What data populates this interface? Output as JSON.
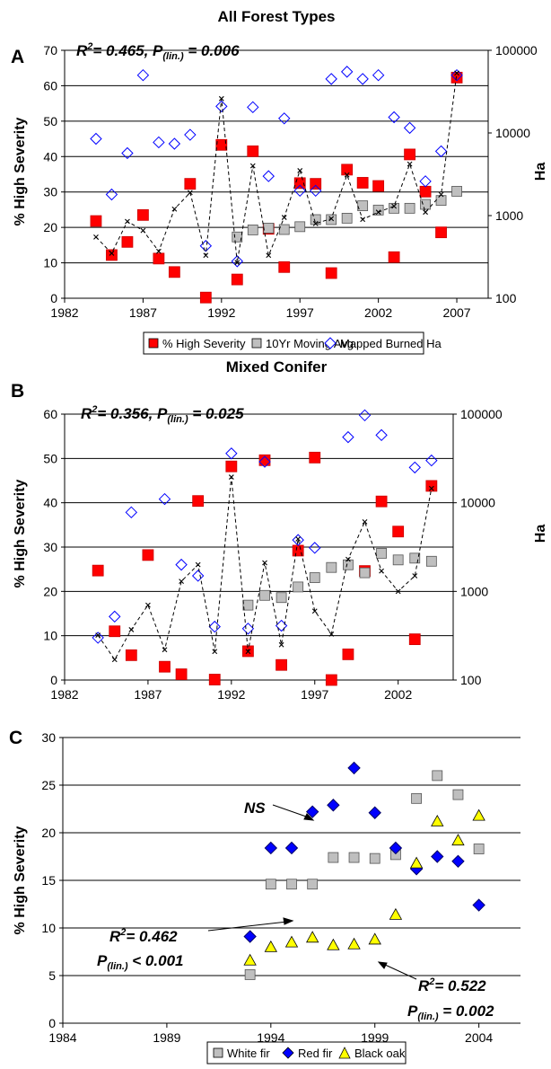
{
  "chart_data": [
    {
      "panel": "A",
      "title": "All Forest Types",
      "type": "scatter",
      "ylabel": "% High Severity",
      "ylabel_right": "Ha",
      "ylim": [
        0,
        70
      ],
      "y_ticks": [
        "0",
        "10",
        "20",
        "30",
        "40",
        "50",
        "60",
        "70"
      ],
      "y2_scale": "log",
      "y2lim": [
        100,
        100000
      ],
      "y2_ticks": [
        "100",
        "1000",
        "10000",
        "100000"
      ],
      "xlim": [
        1982,
        2009
      ],
      "x_ticks": [
        "1982",
        "1987",
        "1992",
        "1997",
        "2002",
        "2007"
      ],
      "grid": "horizontal",
      "annotation": {
        "r2": "= 0.465, ",
        "p_sub": "(lin.)",
        "p_val": " = 0.006"
      },
      "legend": {
        "placement": "bottom",
        "entries": [
          "% High Severity",
          "10Yr Moving Avg",
          "Mapped Burned Ha"
        ]
      },
      "series": [
        {
          "name": "% High Severity",
          "marker": "red-square",
          "axis": "left",
          "x": [
            1984,
            1985,
            1986,
            1987,
            1988,
            1989,
            1990,
            1991,
            1992,
            1993,
            1994,
            1995,
            1996,
            1997,
            1998,
            1999,
            2000,
            2001,
            2002,
            2003,
            2004,
            2005,
            2006,
            2007
          ],
          "y": [
            21.8,
            12.2,
            15.9,
            23.5,
            11.2,
            7.4,
            32.3,
            0.2,
            43.3,
            5.3,
            41.5,
            19.6,
            8.8,
            32.5,
            32.3,
            7.1,
            36.3,
            32.6,
            31.7,
            11.6,
            40.6,
            30.1,
            18.6,
            62.3
          ]
        },
        {
          "name": "10Yr Moving Avg",
          "marker": "gray-square",
          "axis": "left",
          "x": [
            1993,
            1994,
            1995,
            1996,
            1997,
            1998,
            1999,
            2000,
            2001,
            2002,
            2003,
            2004,
            2005,
            2006,
            2007
          ],
          "y": [
            17.3,
            19.3,
            19.8,
            19.4,
            20.2,
            22.2,
            22.2,
            22.6,
            26.1,
            24.9,
            25.4,
            25.4,
            26.5,
            27.6,
            30.2
          ]
        },
        {
          "name": "Mapped Burned Ha",
          "marker": "blue-diamond",
          "axis": "right",
          "x": [
            1984,
            1985,
            1986,
            1987,
            1988,
            1989,
            1990,
            1991,
            1992,
            1993,
            1994,
            1995,
            1996,
            1997,
            1998,
            1999,
            2000,
            2001,
            2002,
            2003,
            2004,
            2005,
            2006,
            2007
          ],
          "y": [
            8500,
            1800,
            5700,
            50000,
            7700,
            7400,
            9500,
            430,
            21000,
            280,
            20500,
            3000,
            15000,
            2000,
            2000,
            45000,
            55000,
            45000,
            50000,
            15500,
            11500,
            2600,
            6000,
            50000
          ]
        },
        {
          "name": "",
          "marker": "black-x-dashed",
          "axis": "right",
          "x": [
            1984,
            1985,
            1986,
            1987,
            1988,
            1989,
            1990,
            1991,
            1992,
            1993,
            1994,
            1995,
            1996,
            1997,
            1998,
            1999,
            2000,
            2001,
            2002,
            2003,
            2004,
            2005,
            2006,
            2007
          ],
          "y": [
            550,
            350,
            850,
            660,
            370,
            1200,
            1900,
            330,
            26000,
            270,
            4000,
            330,
            950,
            3500,
            800,
            920,
            3100,
            900,
            1100,
            1300,
            4200,
            1100,
            1800,
            53000
          ]
        }
      ]
    },
    {
      "panel": "B",
      "title": "Mixed Conifer",
      "type": "scatter",
      "ylabel": "% High Severity",
      "ylabel_right": "Ha",
      "ylim": [
        0,
        60
      ],
      "y_ticks": [
        "0",
        "10",
        "20",
        "30",
        "40",
        "50",
        "60"
      ],
      "y2_scale": "log",
      "y2lim": [
        100,
        100000
      ],
      "y2_ticks": [
        "100",
        "1000",
        "10000",
        "100000"
      ],
      "xlim": [
        1982,
        2005.3
      ],
      "x_ticks": [
        "1982",
        "1987",
        "1992",
        "1997",
        "2002"
      ],
      "grid": "horizontal",
      "annotation": {
        "r2": "= 0.356, ",
        "p_sub": "(lin.)",
        "p_val": " = 0.025"
      },
      "series": [
        {
          "name": "",
          "marker": "red-square",
          "axis": "left",
          "x": [
            1984,
            1985,
            1986,
            1987,
            1988,
            1989,
            1990,
            1991,
            1992,
            1993,
            1994,
            1995,
            1996,
            1997,
            1998,
            1999,
            2000,
            2001,
            2002,
            2003,
            2004
          ],
          "y": [
            24.7,
            11.0,
            5.6,
            28.2,
            3.0,
            1.3,
            40.4,
            0.1,
            48.2,
            6.5,
            49.6,
            3.4,
            29.2,
            50.2,
            0,
            5.8,
            24.6,
            40.3,
            33.5,
            9.2,
            43.8
          ]
        },
        {
          "name": "",
          "marker": "gray-square",
          "axis": "left",
          "x": [
            1993,
            1994,
            1995,
            1996,
            1997,
            1998,
            1999,
            2000,
            2001,
            2002,
            2003,
            2004
          ],
          "y": [
            16.9,
            19.1,
            18.6,
            21.0,
            23.1,
            25.4,
            26.0,
            24.2,
            28.6,
            27.1,
            27.5,
            26.8
          ]
        },
        {
          "name": "",
          "marker": "blue-diamond",
          "axis": "right",
          "x": [
            1984,
            1985,
            1986,
            1988,
            1989,
            1990,
            1991,
            1992,
            1993,
            1994,
            1995,
            1996,
            1997,
            1999,
            2000,
            2001,
            2003,
            2004
          ],
          "y": [
            300,
            520,
            7800,
            11000,
            2000,
            1500,
            400,
            36000,
            380,
            29000,
            410,
            3800,
            3100,
            55000,
            97000,
            58000,
            25000,
            30000
          ]
        },
        {
          "name": "",
          "marker": "black-x-dashed",
          "axis": "right",
          "x": [
            1984,
            1985,
            1986,
            1987,
            1988,
            1989,
            1990,
            1991,
            1992,
            1993,
            1994,
            1995,
            1996,
            1997,
            1998,
            1999,
            2000,
            2001,
            2002,
            2003,
            2004
          ],
          "y": [
            320,
            170,
            370,
            700,
            220,
            1300,
            2000,
            210,
            19500,
            210,
            2100,
            250,
            3900,
            600,
            330,
            2300,
            6100,
            1700,
            1000,
            1500,
            14500
          ]
        }
      ]
    },
    {
      "panel": "C",
      "title": "",
      "type": "scatter",
      "ylabel": "% High Severity",
      "ylim": [
        0,
        30
      ],
      "y_ticks": [
        "0",
        "5",
        "10",
        "15",
        "20",
        "25",
        "30"
      ],
      "xlim": [
        1984,
        2006
      ],
      "x_ticks": [
        "1984",
        "1989",
        "1994",
        "1999",
        "2004"
      ],
      "grid": "horizontal",
      "annotations": [
        {
          "label": "NS"
        },
        {
          "r2": "= 0.462",
          "p_sub": "(lin.)",
          "p_val": " < 0.001"
        },
        {
          "r2": "= 0.522",
          "p_sub": "(lin.)",
          "p_val": " = 0.002"
        }
      ],
      "legend": {
        "placement": "bottom",
        "entries": [
          "White fir",
          "Red fir",
          "Black oak"
        ]
      },
      "series": [
        {
          "name": "White fir",
          "marker": "gray-square",
          "x": [
            1993,
            1994,
            1995,
            1996,
            1997,
            1998,
            1999,
            2000,
            2001,
            2002,
            2003,
            2004
          ],
          "y": [
            5.1,
            14.6,
            14.6,
            14.6,
            17.4,
            17.4,
            17.3,
            17.7,
            23.6,
            26.0,
            24.0,
            18.3
          ]
        },
        {
          "name": "Red fir",
          "marker": "blue-diamond",
          "x": [
            1993,
            1994,
            1995,
            1996,
            1997,
            1998,
            1999,
            2000,
            2001,
            2002,
            2003,
            2004
          ],
          "y": [
            9.1,
            18.4,
            18.4,
            22.2,
            22.9,
            26.8,
            22.1,
            18.4,
            16.2,
            17.5,
            17.0,
            12.4
          ]
        },
        {
          "name": "Black oak",
          "marker": "yellow-triangle",
          "x": [
            1993,
            1994,
            1995,
            1996,
            1997,
            1998,
            1999,
            2000,
            2001,
            2002,
            2003,
            2004
          ],
          "y": [
            6.6,
            8.0,
            8.5,
            9.0,
            8.2,
            8.3,
            8.8,
            11.4,
            16.8,
            21.2,
            19.2,
            21.8
          ]
        }
      ]
    }
  ]
}
